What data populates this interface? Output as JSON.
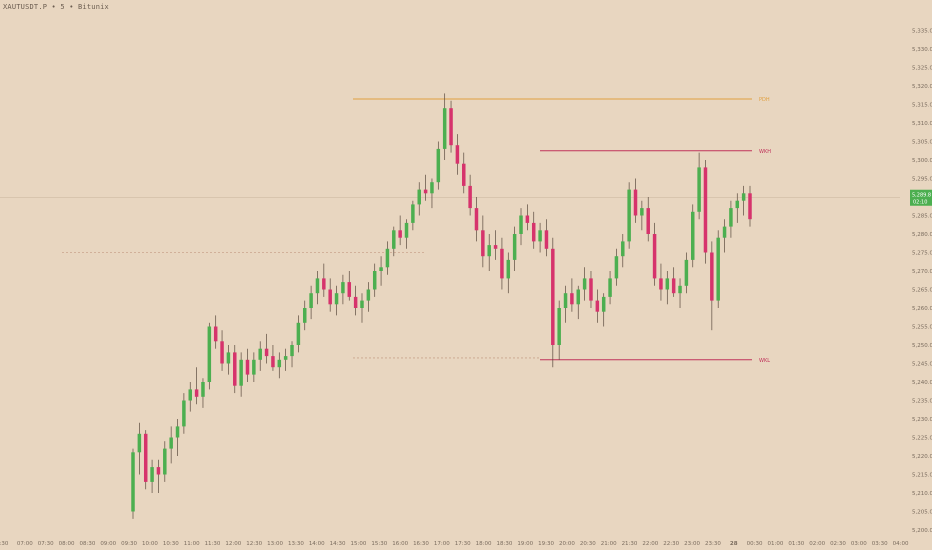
{
  "header": {
    "title": "XAUTUSDT.P • 5 • Bitunix"
  },
  "colors": {
    "background": "#e8d6c0",
    "up": "#4caf50",
    "down": "#d6336c",
    "pdh_line": "#e0a040",
    "wk_line": "#c0335a",
    "dotted_line": "#c9a48c",
    "price_tag": "#4caf50"
  },
  "levels": {
    "pdh_label": "PDH",
    "wkh_label": "WKH",
    "wkl_label": "WKL"
  },
  "current_price": {
    "price": "5,289.8",
    "countdown": "02:10"
  },
  "chart_data": {
    "type": "candlestick",
    "title": "",
    "xlabel": "",
    "ylabel": "",
    "ylim": [
      5200,
      5340
    ],
    "grid": false,
    "y_ticks": [
      "5,335.0",
      "5,330.0",
      "5,325.0",
      "5,320.0",
      "5,315.0",
      "5,310.0",
      "5,305.0",
      "5,300.0",
      "5,295.0",
      "5,290.0",
      "5,285.0",
      "5,280.0",
      "5,275.0",
      "5,270.0",
      "5,265.0",
      "5,260.0",
      "5,255.0",
      "5,250.0",
      "5,245.0",
      "5,240.0",
      "5,235.0",
      "5,230.0",
      "5,225.0",
      "5,220.0",
      "5,215.0",
      "5,210.0",
      "5,205.0",
      "5,200.0"
    ],
    "x_ticks": [
      ":30",
      "07:00",
      "07:30",
      "08:00",
      "08:30",
      "09:00",
      "09:30",
      "10:00",
      "10:30",
      "11:00",
      "11:30",
      "12:00",
      "12:30",
      "13:00",
      "13:30",
      "14:00",
      "14:30",
      "15:00",
      "15:30",
      "16:00",
      "16:30",
      "17:00",
      "17:30",
      "18:00",
      "18:30",
      "19:00",
      "19:30",
      "20:00",
      "20:30",
      "21:00",
      "21:30",
      "22:00",
      "22:30",
      "23:00",
      "23:30",
      "28",
      "00:30",
      "01:00",
      "01:30",
      "02:00",
      "02:30",
      "03:00",
      "03:30",
      "04:00"
    ],
    "levels": {
      "pdh": 5316.5,
      "wkh": 5302.5,
      "wkl": 5246.0,
      "dotted_upper": 5275.0,
      "dotted_lower": 5246.5
    },
    "candles": [
      [
        5205,
        5222,
        5203,
        5221
      ],
      [
        5221,
        5229,
        5215,
        5226
      ],
      [
        5226,
        5227,
        5211,
        5213
      ],
      [
        5213,
        5219,
        5210,
        5217
      ],
      [
        5217,
        5219,
        5210,
        5215
      ],
      [
        5215,
        5224,
        5213,
        5222
      ],
      [
        5222,
        5228,
        5218,
        5225
      ],
      [
        5225,
        5230,
        5220,
        5228
      ],
      [
        5228,
        5237,
        5226,
        5235
      ],
      [
        5235,
        5240,
        5232,
        5238
      ],
      [
        5238,
        5244,
        5234,
        5236
      ],
      [
        5236,
        5241,
        5233,
        5240
      ],
      [
        5240,
        5256,
        5238,
        5255
      ],
      [
        5255,
        5258,
        5249,
        5251
      ],
      [
        5251,
        5254,
        5243,
        5245
      ],
      [
        5245,
        5250,
        5242,
        5248
      ],
      [
        5248,
        5250,
        5237,
        5239
      ],
      [
        5239,
        5248,
        5236,
        5246
      ],
      [
        5246,
        5249,
        5240,
        5242
      ],
      [
        5242,
        5248,
        5240,
        5246
      ],
      [
        5246,
        5251,
        5243,
        5249
      ],
      [
        5249,
        5253,
        5245,
        5247
      ],
      [
        5247,
        5250,
        5243,
        5244
      ],
      [
        5244,
        5248,
        5241,
        5246
      ],
      [
        5246,
        5249,
        5243,
        5247
      ],
      [
        5247,
        5251,
        5244,
        5250
      ],
      [
        5250,
        5258,
        5248,
        5256
      ],
      [
        5256,
        5262,
        5254,
        5260
      ],
      [
        5260,
        5266,
        5257,
        5264
      ],
      [
        5264,
        5270,
        5261,
        5268
      ],
      [
        5268,
        5272,
        5263,
        5265
      ],
      [
        5265,
        5268,
        5259,
        5261
      ],
      [
        5261,
        5266,
        5258,
        5264
      ],
      [
        5264,
        5269,
        5261,
        5267
      ],
      [
        5267,
        5270,
        5262,
        5263
      ],
      [
        5263,
        5266,
        5258,
        5260
      ],
      [
        5260,
        5264,
        5256,
        5262
      ],
      [
        5262,
        5267,
        5259,
        5265
      ],
      [
        5265,
        5272,
        5263,
        5270
      ],
      [
        5270,
        5274,
        5266,
        5271
      ],
      [
        5271,
        5278,
        5269,
        5276
      ],
      [
        5276,
        5282,
        5274,
        5281
      ],
      [
        5281,
        5285,
        5277,
        5279
      ],
      [
        5279,
        5284,
        5276,
        5283
      ],
      [
        5283,
        5289,
        5281,
        5288
      ],
      [
        5288,
        5294,
        5285,
        5292
      ],
      [
        5292,
        5296,
        5289,
        5291
      ],
      [
        5291,
        5295,
        5287,
        5294
      ],
      [
        5294,
        5305,
        5292,
        5303
      ],
      [
        5303,
        5318,
        5300,
        5314
      ],
      [
        5314,
        5316,
        5302,
        5304
      ],
      [
        5304,
        5307,
        5296,
        5299
      ],
      [
        5299,
        5302,
        5291,
        5293
      ],
      [
        5293,
        5296,
        5285,
        5287
      ],
      [
        5287,
        5290,
        5278,
        5281
      ],
      [
        5281,
        5285,
        5271,
        5274
      ],
      [
        5274,
        5280,
        5270,
        5277
      ],
      [
        5277,
        5281,
        5273,
        5276
      ],
      [
        5276,
        5279,
        5265,
        5268
      ],
      [
        5268,
        5275,
        5264,
        5273
      ],
      [
        5273,
        5282,
        5270,
        5280
      ],
      [
        5280,
        5287,
        5277,
        5285
      ],
      [
        5285,
        5288,
        5281,
        5283
      ],
      [
        5283,
        5286,
        5276,
        5278
      ],
      [
        5278,
        5283,
        5275,
        5281
      ],
      [
        5281,
        5284,
        5274,
        5276
      ],
      [
        5276,
        5279,
        5244,
        5250
      ],
      [
        5250,
        5262,
        5246,
        5260
      ],
      [
        5260,
        5266,
        5256,
        5264
      ],
      [
        5264,
        5268,
        5259,
        5261
      ],
      [
        5261,
        5266,
        5257,
        5265
      ],
      [
        5265,
        5271,
        5262,
        5268
      ],
      [
        5268,
        5270,
        5260,
        5262
      ],
      [
        5262,
        5265,
        5256,
        5259
      ],
      [
        5259,
        5264,
        5255,
        5263
      ],
      [
        5263,
        5270,
        5261,
        5268
      ],
      [
        5268,
        5276,
        5266,
        5274
      ],
      [
        5274,
        5280,
        5271,
        5278
      ],
      [
        5278,
        5294,
        5276,
        5292
      ],
      [
        5292,
        5295,
        5283,
        5285
      ],
      [
        5285,
        5289,
        5281,
        5287
      ],
      [
        5287,
        5290,
        5278,
        5280
      ],
      [
        5280,
        5283,
        5266,
        5268
      ],
      [
        5268,
        5272,
        5262,
        5265
      ],
      [
        5265,
        5270,
        5261,
        5268
      ],
      [
        5268,
        5271,
        5263,
        5264
      ],
      [
        5264,
        5268,
        5260,
        5266
      ],
      [
        5266,
        5275,
        5264,
        5273
      ],
      [
        5273,
        5288,
        5271,
        5286
      ],
      [
        5286,
        5302,
        5284,
        5298
      ],
      [
        5298,
        5300,
        5272,
        5275
      ],
      [
        5275,
        5278,
        5254,
        5262
      ],
      [
        5262,
        5281,
        5260,
        5279
      ],
      [
        5279,
        5284,
        5275,
        5282
      ],
      [
        5282,
        5289,
        5279,
        5287
      ],
      [
        5287,
        5291,
        5283,
        5289
      ],
      [
        5289,
        5293,
        5285,
        5291
      ],
      [
        5291,
        5293,
        5282,
        5284
      ]
    ]
  }
}
